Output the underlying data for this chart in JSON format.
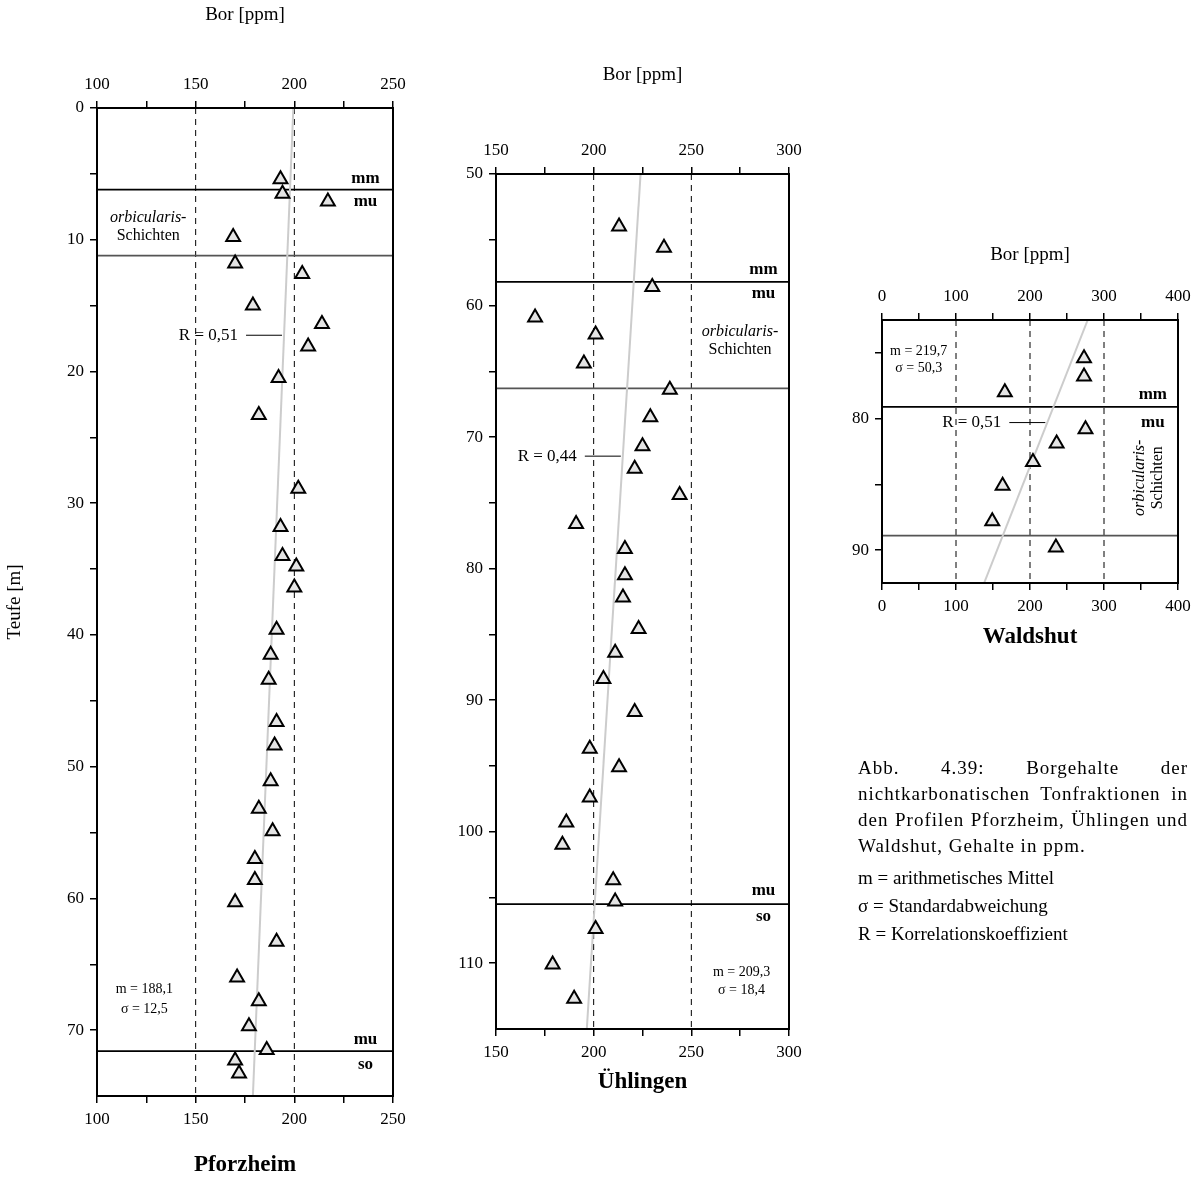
{
  "chart_data": [
    {
      "type": "scatter",
      "title": "Pforzheim",
      "x2label": "Bor [ppm]",
      "ylabel": "Teufe [m]",
      "xlim": [
        100,
        250
      ],
      "xticks": [
        100,
        {
          "value": 125,
          "label": null
        },
        150,
        {
          "value": 175,
          "label": null
        },
        200,
        {
          "value": 225,
          "label": null
        },
        250
      ],
      "x2lim": [
        100,
        250
      ],
      "x2ticks": [
        100,
        {
          "value": 125,
          "label": null
        },
        150,
        {
          "value": 175,
          "label": null
        },
        200,
        {
          "value": 225,
          "label": null
        },
        250
      ],
      "ylim": [
        75,
        0
      ],
      "yticks": [
        0,
        {
          "value": 5,
          "label": null
        },
        10,
        {
          "value": 15,
          "label": null
        },
        20,
        {
          "value": 25,
          "label": null
        },
        30,
        {
          "value": 35,
          "label": null
        },
        40,
        {
          "value": 45,
          "label": null
        },
        50,
        {
          "value": 55,
          "label": null
        },
        60,
        {
          "value": 65,
          "label": null
        },
        70
      ],
      "grid": "x",
      "series": [
        {
          "color": "#000000",
          "marker": "triangle",
          "x": [
            193,
            194,
            217,
            169,
            170,
            204,
            179,
            214,
            207,
            192,
            182,
            202,
            193,
            194,
            201,
            200,
            191,
            188,
            187,
            191,
            190,
            188,
            182,
            189,
            180,
            180,
            170,
            191,
            171,
            182,
            177,
            186,
            170,
            172
          ],
          "values": [
            5.4,
            6.5,
            7.1,
            9.8,
            11.8,
            12.6,
            15.0,
            16.4,
            18.1,
            20.5,
            23.3,
            28.9,
            31.8,
            34.0,
            34.8,
            36.4,
            39.6,
            41.5,
            43.4,
            46.6,
            48.4,
            51.1,
            53.2,
            54.9,
            57.0,
            58.6,
            60.3,
            63.3,
            66.0,
            67.8,
            69.7,
            71.5,
            72.3,
            73.3
          ]
        },
        {
          "type": "line",
          "name": "R = 0,51",
          "color": "#cccccc",
          "x": [
            199.5,
            179
          ],
          "values": [
            0,
            75
          ]
        }
      ],
      "ref_lines": [
        {
          "axis": "y",
          "value": 6.2,
          "color": "#000000"
        },
        {
          "axis": "y",
          "value": 11.2,
          "color": "#555555"
        },
        {
          "axis": "y",
          "value": 71.6,
          "color": "#000000"
        }
      ],
      "annotations": [
        "mm",
        "mu",
        "orbicularis-\nSchichten",
        "mu",
        "so",
        "m = 188,1",
        "σ = 12,5"
      ]
    },
    {
      "type": "scatter",
      "title": "Ühlingen",
      "x2label": "Bor [ppm]",
      "xlim": [
        150,
        300
      ],
      "xticks": [
        150,
        {
          "value": 175,
          "label": null
        },
        200,
        {
          "value": 225,
          "label": null
        },
        250,
        {
          "value": 275,
          "label": null
        },
        300
      ],
      "x2lim": [
        150,
        300
      ],
      "x2ticks": [
        150,
        {
          "value": 175,
          "label": null
        },
        200,
        {
          "value": 225,
          "label": null
        },
        250,
        {
          "value": 275,
          "label": null
        },
        300
      ],
      "ylim": [
        115,
        50
      ],
      "yticks": [
        50,
        {
          "value": 55,
          "label": null
        },
        60,
        {
          "value": 65,
          "label": null
        },
        70,
        {
          "value": 75,
          "label": null
        },
        80,
        {
          "value": 85,
          "label": null
        },
        90,
        {
          "value": 95,
          "label": null
        },
        100,
        {
          "value": 105,
          "label": null
        },
        110
      ],
      "grid": "x",
      "series": [
        {
          "color": "#000000",
          "marker": "triangle",
          "x": [
            213,
            236,
            230,
            170,
            201,
            195,
            239,
            229,
            225,
            221,
            244,
            191,
            216,
            216,
            215,
            223,
            211,
            205,
            221,
            198,
            213,
            198,
            186,
            184,
            210,
            211,
            201,
            179,
            190
          ],
          "values": [
            54.0,
            55.6,
            58.6,
            60.9,
            62.2,
            64.4,
            66.4,
            68.5,
            70.7,
            72.4,
            74.4,
            76.6,
            78.5,
            80.5,
            82.2,
            84.6,
            86.4,
            88.4,
            90.9,
            93.7,
            95.1,
            97.4,
            99.3,
            101.0,
            103.7,
            105.3,
            107.4,
            110.1,
            112.7
          ]
        },
        {
          "type": "line",
          "name": "R = 0,44",
          "color": "#cccccc",
          "x": [
            224,
            196.5
          ],
          "values": [
            50,
            115
          ]
        }
      ],
      "ref_lines": [
        {
          "axis": "y",
          "value": 58.2,
          "color": "#000000"
        },
        {
          "axis": "y",
          "value": 66.3,
          "color": "#555555"
        },
        {
          "axis": "y",
          "value": 105.5,
          "color": "#000000"
        }
      ],
      "annotations": [
        "mm",
        "mu",
        "orbicularis-\nSchichten",
        "mu",
        "so",
        "m = 209,3",
        "σ = 18,4"
      ]
    },
    {
      "type": "scatter",
      "title": "Waldshut",
      "x2label": "Bor [ppm]",
      "xlim": [
        0,
        400
      ],
      "xticks": [
        0,
        {
          "value": 50,
          "label": null
        },
        100,
        {
          "value": 150,
          "label": null
        },
        200,
        {
          "value": 250,
          "label": null
        },
        300,
        {
          "value": 350,
          "label": null
        },
        400
      ],
      "x2lim": [
        0,
        400
      ],
      "x2ticks": [
        0,
        {
          "value": 50,
          "label": null
        },
        100,
        {
          "value": 150,
          "label": null
        },
        200,
        {
          "value": 250,
          "label": null
        },
        300,
        {
          "value": 350,
          "label": null
        },
        400
      ],
      "ylim": [
        92.5,
        72.5
      ],
      "yticks": [
        {
          "value": 75,
          "label": null
        },
        80,
        {
          "value": 85,
          "label": null
        },
        90
      ],
      "grid": "x",
      "series": [
        {
          "color": "#000000",
          "marker": "triangle",
          "x": [
            273,
            273,
            166,
            275,
            236,
            204,
            163,
            149,
            235
          ],
          "values": [
            75.4,
            76.8,
            78.0,
            80.8,
            81.9,
            83.3,
            85.1,
            87.8,
            89.8
          ]
        },
        {
          "type": "line",
          "name": "R = 0,51",
          "color": "#cccccc",
          "x": [
            278,
            138
          ],
          "values": [
            72.5,
            92.5
          ]
        }
      ],
      "ref_lines": [
        {
          "axis": "y",
          "value": 79.1,
          "color": "#000000"
        },
        {
          "axis": "y",
          "value": 88.9,
          "color": "#555555"
        }
      ],
      "annotations": [
        "mm",
        "mu",
        "orbicularis-\nSchichten",
        "m = 219,7",
        "σ = 50,3"
      ]
    },
    {
      "type": "other",
      "annotations": [
        "Abb. 4.39: Borgehalte der nichtkarbonatischen Tonfraktionen in den Profilen Pforzheim, Ühlingen und Waldshut, Gehalte in ppm.",
        "m = arithmetisches Mittel",
        "σ = Standardabweichung",
        "R = Korrelationskoeffizient"
      ]
    }
  ]
}
